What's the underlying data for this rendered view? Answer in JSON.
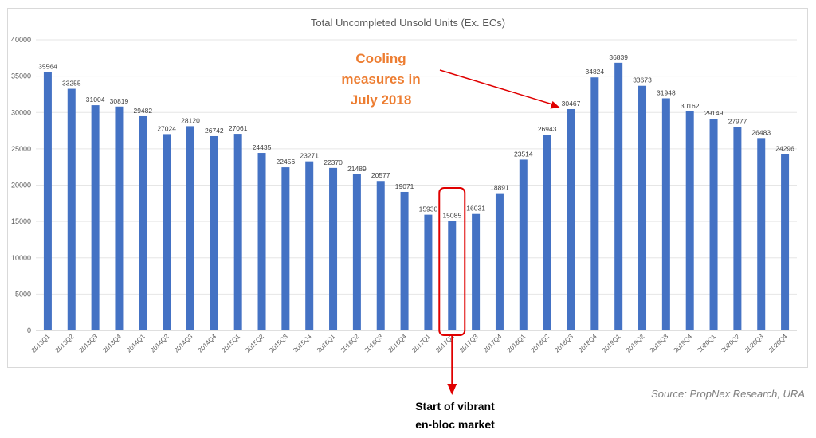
{
  "chart_data": {
    "type": "bar",
    "title": "Total Uncompleted Unsold Units (Ex. ECs)",
    "categories": [
      "2013Q1",
      "2013Q2",
      "2013Q3",
      "2013Q4",
      "2014Q1",
      "2014Q2",
      "2014Q3",
      "2014Q4",
      "2015Q1",
      "2015Q2",
      "2015Q3",
      "2015Q4",
      "2016Q1",
      "2016Q2",
      "2016Q3",
      "2016Q4",
      "2017Q1",
      "2017Q2",
      "2017Q3",
      "2017Q4",
      "2018Q1",
      "2018Q2",
      "2018Q3",
      "2018Q4",
      "2019Q1",
      "2019Q2",
      "2019Q3",
      "2019Q4",
      "2020Q1",
      "2020Q2",
      "2020Q3",
      "2020Q4"
    ],
    "values": [
      35564,
      33255,
      31004,
      30819,
      29482,
      27024,
      28120,
      26742,
      27061,
      24435,
      22456,
      23271,
      22370,
      21489,
      20577,
      19071,
      15930,
      15085,
      16031,
      18891,
      23514,
      26943,
      30467,
      34824,
      36839,
      33673,
      31948,
      30162,
      29149,
      27977,
      26483,
      24296
    ],
    "ylim": [
      0,
      40000
    ],
    "yticks": [
      0,
      5000,
      10000,
      15000,
      20000,
      25000,
      30000,
      35000,
      40000
    ],
    "grid": "horizontal",
    "bar_color": "#4472C4",
    "legend": "none"
  },
  "annotations": {
    "cooling": {
      "lines": [
        "Cooling",
        "measures in",
        "July 2018"
      ],
      "color": "#ED7D31",
      "target_category": "2018Q3"
    },
    "enbloc": {
      "lines": [
        "Start of vibrant",
        "en-bloc market"
      ],
      "color": "#000000",
      "highlight_category": "2017Q2",
      "highlight_color": "#E00000"
    }
  },
  "source": "Source: PropNex Research, URA"
}
